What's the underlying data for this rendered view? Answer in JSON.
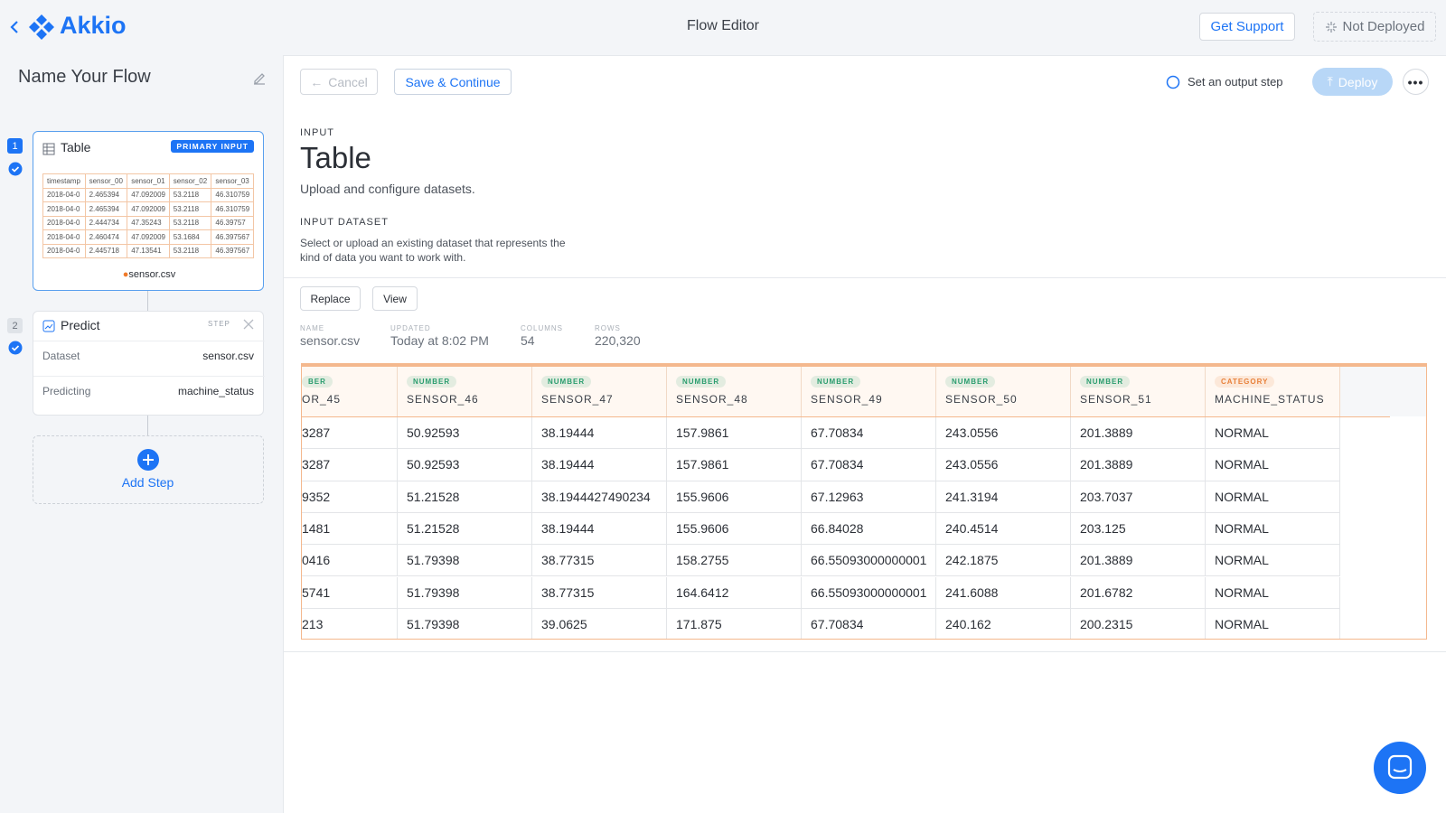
{
  "header": {
    "logo": "Akkio",
    "title": "Flow Editor",
    "support": "Get Support",
    "status": "Not Deployed"
  },
  "sidebar": {
    "flow_name": "Name Your Flow",
    "steps": [
      {
        "number": "1",
        "title": "Table",
        "badge": "PRIMARY INPUT",
        "preview": {
          "columns": [
            "timestamp",
            "sensor_00",
            "sensor_01",
            "sensor_02",
            "sensor_03"
          ],
          "rows": [
            [
              "2018-04-0",
              "2.465394",
              "47.092009",
              "53.2118",
              "46.310759"
            ],
            [
              "2018-04-0",
              "2.465394",
              "47.092009",
              "53.2118",
              "46.310759"
            ],
            [
              "2018-04-0",
              "2.444734",
              "47.35243",
              "53.2118",
              "46.39757"
            ],
            [
              "2018-04-0",
              "2.460474",
              "47.092009",
              "53.1684",
              "46.397567"
            ],
            [
              "2018-04-0",
              "2.445718",
              "47.13541",
              "53.2118",
              "46.397567"
            ]
          ]
        },
        "file": "sensor.csv"
      },
      {
        "number": "2",
        "title": "Predict",
        "badge": "STEP",
        "fields": [
          {
            "label": "Dataset",
            "value": "sensor.csv"
          },
          {
            "label": "Predicting",
            "value": "machine_status"
          }
        ]
      }
    ],
    "add_step": "Add Step"
  },
  "toolbar": {
    "cancel": "Cancel",
    "save": "Save & Continue",
    "output": "Set an output step",
    "deploy": "Deploy"
  },
  "content": {
    "section": "INPUT",
    "title": "Table",
    "subtitle": "Upload and configure datasets.",
    "dataset_label": "INPUT DATASET",
    "dataset_help": "Select or upload an existing dataset that represents the kind of data you want to work with.",
    "actions": [
      "Replace",
      "View"
    ],
    "meta": [
      {
        "label": "NAME",
        "value": "sensor.csv"
      },
      {
        "label": "UPDATED",
        "value": "Today at 8:02 PM"
      },
      {
        "label": "COLUMNS",
        "value": "54"
      },
      {
        "label": "ROWS",
        "value": "220,320"
      }
    ],
    "table": {
      "columns": [
        {
          "type": "BER",
          "name": "OR_45",
          "color": "#2a9d6e"
        },
        {
          "type": "NUMBER",
          "name": "SENSOR_46",
          "color": "#2a9d6e"
        },
        {
          "type": "NUMBER",
          "name": "SENSOR_47",
          "color": "#2a9d6e"
        },
        {
          "type": "NUMBER",
          "name": "SENSOR_48",
          "color": "#2a9d6e"
        },
        {
          "type": "NUMBER",
          "name": "SENSOR_49",
          "color": "#2a9d6e"
        },
        {
          "type": "NUMBER",
          "name": "SENSOR_50",
          "color": "#2a9d6e"
        },
        {
          "type": "NUMBER",
          "name": "SENSOR_51",
          "color": "#2a9d6e"
        },
        {
          "type": "CATEGORY",
          "name": "MACHINE_STATUS",
          "color": "#e8813a"
        }
      ],
      "rows": [
        [
          "3287",
          "50.92593",
          "38.19444",
          "157.9861",
          "67.70834",
          "243.0556",
          "201.3889",
          "NORMAL"
        ],
        [
          "3287",
          "50.92593",
          "38.19444",
          "157.9861",
          "67.70834",
          "243.0556",
          "201.3889",
          "NORMAL"
        ],
        [
          "9352",
          "51.21528",
          "38.1944427490234",
          "155.9606",
          "67.12963",
          "241.3194",
          "203.7037",
          "NORMAL"
        ],
        [
          "1481",
          "51.21528",
          "38.19444",
          "155.9606",
          "66.84028",
          "240.4514",
          "203.125",
          "NORMAL"
        ],
        [
          "0416",
          "51.79398",
          "38.77315",
          "158.2755",
          "66.55093000000001",
          "242.1875",
          "201.3889",
          "NORMAL"
        ],
        [
          "5741",
          "51.79398",
          "38.77315",
          "164.6412",
          "66.55093000000001",
          "241.6088",
          "201.6782",
          "NORMAL"
        ],
        [
          "213",
          "51.79398",
          "39.0625",
          "171.875",
          "67.70834",
          "240.162",
          "200.2315",
          "NORMAL"
        ]
      ]
    }
  }
}
